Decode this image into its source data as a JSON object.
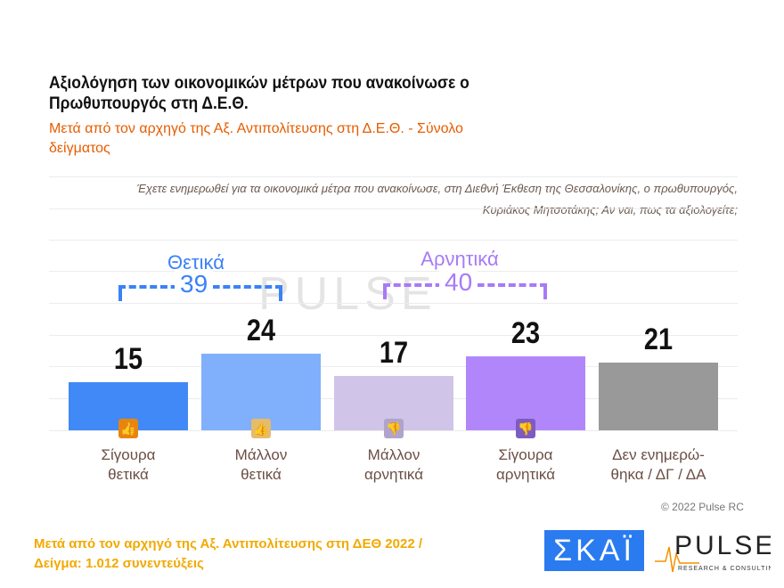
{
  "title": "Αξιολόγηση των οικονομικών μέτρων που ανακοίνωσε ο Πρωθυπουργός στη Δ.Ε.Θ.",
  "subtitle": "Μετά από τον αρχηγό της Αξ. Αντιπολίτευσης στη Δ.Ε.Θ. - Σύνολο δείγματος",
  "question": "Έχετε ενημερωθεί για τα οικονομικά μέτρα που ανακοίνωσε, στη Διεθνή Έκθεση της Θεσσαλονίκης, ο πρωθυπουργός, Κυριάκος Μητσοτάκης; Αν ναι, πως τα αξιολογείτε;",
  "groups": [
    {
      "label": "Θετικά",
      "total": "39",
      "color": "#3b82f6"
    },
    {
      "label": "Αρνητικά",
      "total": "40",
      "color": "#a77bf5"
    }
  ],
  "chart_data": {
    "type": "bar",
    "categories": [
      "Σίγουρα θετικά",
      "Μάλλον θετικά",
      "Μάλλον αρνητικά",
      "Σίγουρα αρνητικά",
      "Δεν ενημερώθηκα / ΔΓ / ΔΑ"
    ],
    "category_lines": [
      [
        "Σίγουρα",
        "θετικά"
      ],
      [
        "Μάλλον",
        "θετικά"
      ],
      [
        "Μάλλον",
        "αρνητικά"
      ],
      [
        "Σίγουρα",
        "αρνητικά"
      ],
      [
        "Δεν ενημερώ-",
        "θηκα / ΔΓ / ΔΑ"
      ]
    ],
    "values": [
      15,
      24,
      17,
      23,
      21
    ],
    "colors": [
      "#4189f7",
      "#80b0fb",
      "#d0c4e8",
      "#b286fb",
      "#999999"
    ],
    "icons": [
      "double-thumbs-up",
      "thumbs-up",
      "thumbs-down",
      "double-thumbs-down",
      ""
    ],
    "icon_colors": [
      "#e8850f",
      "#e6bb6a",
      "#b1a4cc",
      "#7d5cc0",
      ""
    ],
    "ylim": [
      0,
      50
    ],
    "grid": true
  },
  "watermark": "PULSE",
  "copyright": "© 2022 Pulse RC",
  "footer": [
    "Μετά από τον αρχηγό της Αξ. Αντιπολίτευσης στη ΔΕΘ  2022  /",
    "Δείγμα:  1.012 συνεντεύξεις"
  ],
  "logos": {
    "skai": "ΣΚΑΪ",
    "pulse": "PULSE",
    "pulse_sub": "RESEARCH & CONSULTING"
  }
}
